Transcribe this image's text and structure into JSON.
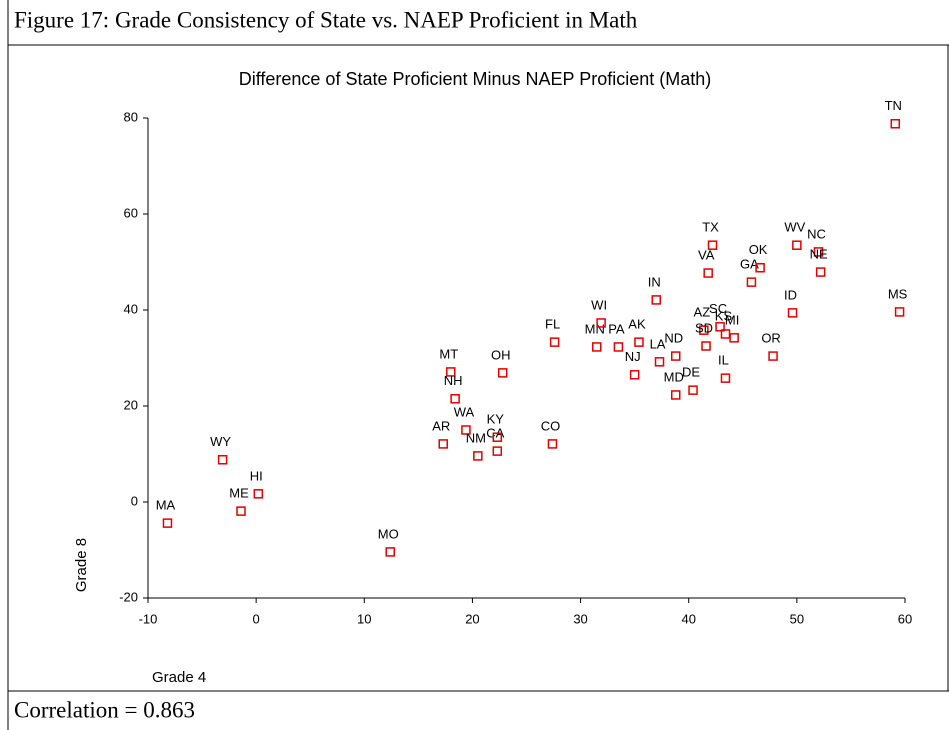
{
  "figure_caption": "Figure 17: Grade Consistency of State vs. NAEP Proficient in Math",
  "footer": "Correlation = 0.863",
  "chart_data": {
    "type": "scatter",
    "title": "Difference of State Proficient Minus NAEP Proficient (Math)",
    "x_label": "Grade 4",
    "y_label": "Grade 8",
    "xlim": [
      -10,
      60
    ],
    "xticks": [
      -10,
      0,
      10,
      20,
      30,
      40,
      50,
      60
    ],
    "ylim": [
      -20,
      80
    ],
    "yticks": [
      -20,
      0,
      20,
      40,
      60,
      80
    ],
    "color": "#e00000",
    "labels": [
      "MA",
      "WY",
      "HI",
      "ME",
      "MO",
      "AR",
      "MT",
      "NH",
      "WA",
      "NM",
      "CA",
      "KY",
      "OH",
      "CO",
      "FL",
      "MN",
      "WI",
      "PA",
      "AK",
      "NJ",
      "LA",
      "IN",
      "ND",
      "MD",
      "DE",
      "TX",
      "VA",
      "AZ",
      "SD",
      "SC",
      "KS",
      "MI",
      "IL",
      "GA",
      "OK",
      "OR",
      "ID",
      "WV",
      "NC",
      "NE",
      "TN",
      "MS"
    ],
    "x": [
      -8.2,
      -3.1,
      0.2,
      -1.4,
      12.4,
      17.3,
      18.0,
      18.4,
      19.4,
      20.5,
      22.3,
      22.3,
      22.8,
      27.4,
      27.6,
      31.5,
      31.9,
      33.5,
      35.4,
      35.0,
      37.3,
      37.0,
      38.8,
      38.8,
      40.4,
      42.2,
      41.8,
      41.4,
      41.6,
      42.9,
      43.4,
      44.2,
      43.4,
      45.8,
      46.6,
      47.8,
      49.6,
      50.0,
      52.0,
      52.2,
      59.1,
      59.5
    ],
    "values": [
      -4.4,
      8.8,
      1.7,
      -1.9,
      -10.4,
      12.1,
      27.1,
      21.5,
      15.0,
      9.6,
      10.6,
      13.5,
      26.9,
      12.1,
      33.3,
      32.3,
      37.3,
      32.3,
      33.3,
      26.5,
      29.2,
      42.1,
      30.4,
      22.3,
      23.3,
      53.5,
      47.7,
      35.8,
      32.5,
      36.5,
      35.0,
      34.2,
      25.8,
      45.8,
      48.8,
      30.4,
      39.4,
      53.5,
      52.1,
      47.9,
      78.8,
      39.6
    ]
  }
}
